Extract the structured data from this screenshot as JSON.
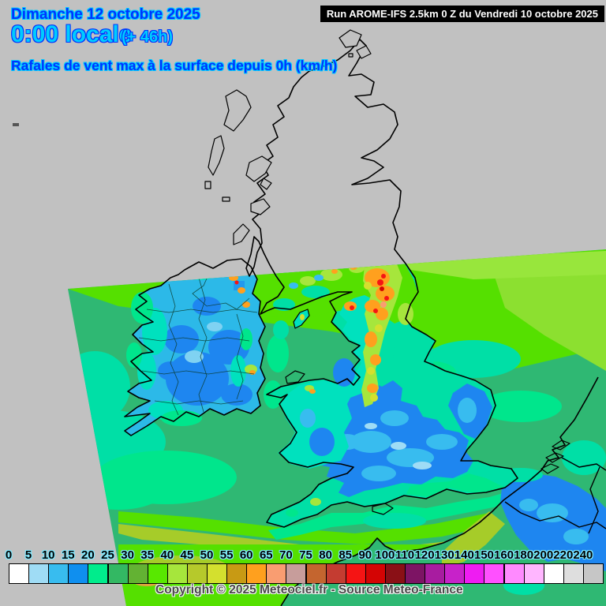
{
  "header": {
    "date_line": "Dimanche 12 octobre 2025",
    "time_line": "0:00 locale",
    "offset_label": "(+ 46h)",
    "subtitle": "Rafales de vent max à la surface depuis 0h (km/h)",
    "text_blue": "#0033FF",
    "text_cyan": "#00CCFF"
  },
  "run_info": {
    "label": "Run AROME-IFS 2.5km 0 Z du Vendredi 10 octobre 2025",
    "background": "#000000",
    "foreground": "#FFFFFF"
  },
  "legend": {
    "unit": "km/h",
    "entries": [
      {
        "label": "0",
        "color": "#FFFFFF"
      },
      {
        "label": "5",
        "color": "#9FDCF5"
      },
      {
        "label": "10",
        "color": "#38BCEF"
      },
      {
        "label": "15",
        "color": "#0F8FEF"
      },
      {
        "label": "20",
        "color": "#00EC8C"
      },
      {
        "label": "25",
        "color": "#33B863"
      },
      {
        "label": "30",
        "color": "#63B233"
      },
      {
        "label": "35",
        "color": "#58E800"
      },
      {
        "label": "40",
        "color": "#A6E63C"
      },
      {
        "label": "45",
        "color": "#B6C92B"
      },
      {
        "label": "50",
        "color": "#D4E02E"
      },
      {
        "label": "55",
        "color": "#C89A14"
      },
      {
        "label": "60",
        "color": "#FFA01E"
      },
      {
        "label": "65",
        "color": "#F99D71"
      },
      {
        "label": "70",
        "color": "#C79D9B"
      },
      {
        "label": "75",
        "color": "#C4652F"
      },
      {
        "label": "80",
        "color": "#C43C31"
      },
      {
        "label": "85",
        "color": "#F51414"
      },
      {
        "label": "90",
        "color": "#D40404"
      },
      {
        "label": "100",
        "color": "#8A1016"
      },
      {
        "label": "110",
        "color": "#7D1464"
      },
      {
        "label": "120",
        "color": "#A81CA0"
      },
      {
        "label": "130",
        "color": "#C722C9"
      },
      {
        "label": "140",
        "color": "#EE1CF2"
      },
      {
        "label": "150",
        "color": "#FF50FF"
      },
      {
        "label": "160",
        "color": "#FF8AFF"
      },
      {
        "label": "180",
        "color": "#FFB6FF"
      },
      {
        "label": "200",
        "color": "#FFFFFF"
      },
      {
        "label": "220",
        "color": "#DEDEDE"
      },
      {
        "label": "240",
        "color": "#C6C6C6"
      }
    ],
    "tick_color": "#000000",
    "tick_halo": "#7FE9FF"
  },
  "footer": {
    "copyright": "Copyright © 2025 Meteociel.fr - Source Meteo-France"
  },
  "map": {
    "background": "#C1C1C1",
    "coastline_color": "#000000"
  }
}
